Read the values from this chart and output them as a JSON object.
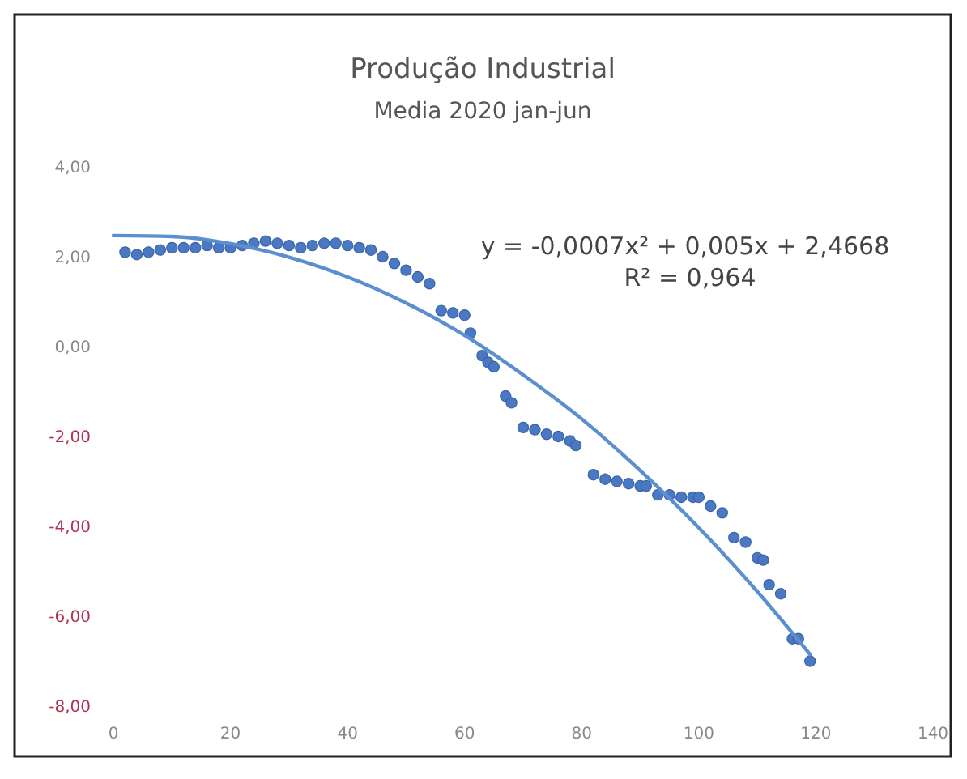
{
  "chart_data": {
    "type": "scatter",
    "title": "Produção Industrial",
    "subtitle": "Media 2020 jan-jun",
    "xlim": [
      0,
      140
    ],
    "xticks": [
      0,
      20,
      40,
      60,
      80,
      100,
      120,
      140
    ],
    "ylim": [
      -8,
      4
    ],
    "yticks": [
      {
        "value": -8,
        "label": "-8,00"
      },
      {
        "value": -6,
        "label": "-6,00"
      },
      {
        "value": -4,
        "label": "-4,00"
      },
      {
        "value": -2,
        "label": "-2,00"
      },
      {
        "value": 0,
        "label": "0,00"
      },
      {
        "value": 2,
        "label": "2,00"
      },
      {
        "value": 4,
        "label": "4,00"
      }
    ],
    "grid": false,
    "marker": "circle",
    "annotations": [
      "y = -0,0007x² + 0,005x + 2,4668",
      "R² = 0,964"
    ],
    "series": [
      {
        "color": "#4a78c2",
        "x": [
          2,
          4,
          6,
          8,
          10,
          12,
          14,
          16,
          18,
          20,
          22,
          24,
          26,
          28,
          30,
          32,
          34,
          36,
          38,
          40,
          42,
          44,
          46,
          48,
          50,
          52,
          54,
          56,
          58,
          60,
          61,
          63,
          64,
          65,
          67,
          68,
          70,
          72,
          74,
          76,
          78,
          79,
          82,
          84,
          86,
          88,
          90,
          91,
          93,
          95,
          97,
          99,
          100,
          102,
          104,
          106,
          108,
          110,
          111,
          112,
          114,
          116,
          117,
          119
        ],
        "values": [
          2.1,
          2.05,
          2.1,
          2.15,
          2.2,
          2.2,
          2.2,
          2.25,
          2.2,
          2.2,
          2.25,
          2.3,
          2.35,
          2.3,
          2.25,
          2.2,
          2.25,
          2.3,
          2.3,
          2.25,
          2.2,
          2.15,
          2.0,
          1.85,
          1.7,
          1.55,
          1.4,
          0.8,
          0.75,
          0.7,
          0.3,
          -0.2,
          -0.35,
          -0.45,
          -1.1,
          -1.25,
          -1.8,
          -1.85,
          -1.95,
          -2.0,
          -2.1,
          -2.2,
          -2.85,
          -2.95,
          -3.0,
          -3.05,
          -3.1,
          -3.1,
          -3.3,
          -3.3,
          -3.35,
          -3.35,
          -3.35,
          -3.55,
          -3.7,
          -4.25,
          -4.35,
          -4.7,
          -4.75,
          -5.3,
          -5.5,
          -6.5,
          -6.5,
          -7.0
        ]
      },
      {
        "type": "line",
        "color": "#5b8fd0",
        "marker": "none",
        "x": [
          0,
          10,
          20,
          30,
          40,
          50,
          60,
          70,
          80,
          90,
          100,
          110,
          119
        ],
        "values": [
          2.47,
          2.45,
          2.29,
          1.99,
          1.55,
          0.97,
          0.25,
          -0.63,
          -1.61,
          -2.76,
          -4.03,
          -5.45,
          -6.85
        ]
      }
    ]
  }
}
